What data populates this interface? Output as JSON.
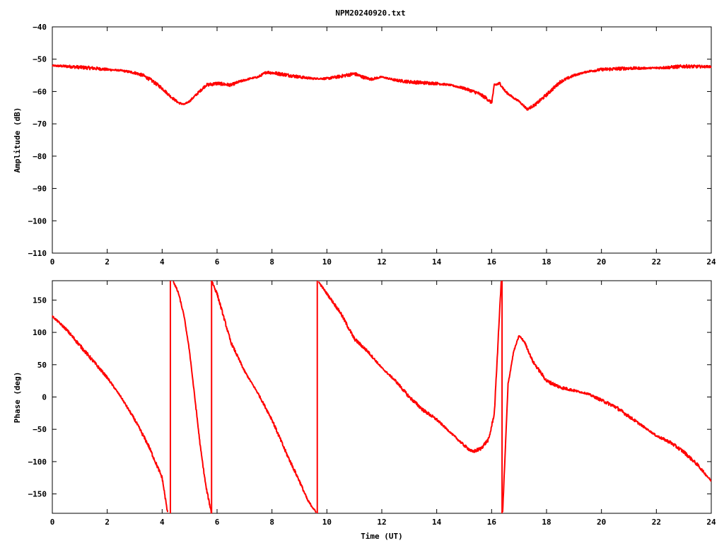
{
  "title": "NPM20240920.txt",
  "colors": {
    "series": "#ff0000",
    "axis": "#000000",
    "background": "#ffffff"
  },
  "chart_data": [
    {
      "type": "line",
      "title": "NPM20240920.txt",
      "xlabel": "",
      "ylabel": "Amplitude (dB)",
      "xlim": [
        0,
        24
      ],
      "ylim": [
        -110,
        -40
      ],
      "x_ticks": [
        0,
        2,
        4,
        6,
        8,
        10,
        12,
        14,
        16,
        18,
        20,
        22,
        24
      ],
      "y_ticks": [
        -40,
        -50,
        -60,
        -70,
        -80,
        -90,
        -100,
        -110
      ],
      "x_tick_labels": [
        "0",
        "2",
        "4",
        "6",
        "8",
        "10",
        "12",
        "14",
        "16",
        "18",
        "20",
        "22",
        "24"
      ],
      "y_tick_labels": [
        "−40",
        "−50",
        "−60",
        "−70",
        "−80",
        "−90",
        "−100",
        "−110"
      ],
      "grid": false,
      "legend": "none",
      "series": [
        {
          "x": [
            0,
            0.5,
            1,
            1.5,
            2,
            2.5,
            3,
            3.3,
            3.6,
            4,
            4.3,
            4.6,
            4.8,
            5,
            5.3,
            5.6,
            6,
            6.3,
            6.5,
            6.8,
            7.2,
            7.5,
            7.8,
            8,
            8.5,
            9,
            9.5,
            10,
            10.5,
            11,
            11.3,
            11.6,
            12,
            12.5,
            13,
            13.5,
            14,
            14.5,
            15,
            15.5,
            15.8,
            16,
            16.1,
            16.3,
            16.5,
            16.8,
            17,
            17.3,
            17.6,
            18,
            18.5,
            19,
            19.5,
            20,
            20.5,
            21,
            21.5,
            22,
            22.5,
            23,
            23.5,
            24
          ],
          "y": [
            -52,
            -52.2,
            -52.5,
            -52.8,
            -53.2,
            -53.5,
            -54.2,
            -55,
            -56.5,
            -59,
            -61.5,
            -63.5,
            -64,
            -63,
            -60.5,
            -58,
            -57.5,
            -57.8,
            -58,
            -57,
            -56,
            -55.5,
            -54,
            -54.2,
            -54.8,
            -55.5,
            -56,
            -56,
            -55.3,
            -54.5,
            -55.5,
            -56.2,
            -55.5,
            -56.5,
            -57,
            -57.3,
            -57.5,
            -58,
            -59,
            -60.5,
            -62,
            -63.5,
            -58,
            -57.5,
            -60,
            -62,
            -63,
            -65.5,
            -64,
            -61,
            -57,
            -55,
            -53.8,
            -53.2,
            -53,
            -52.8,
            -52.8,
            -52.7,
            -52.5,
            -52.2,
            -52.3,
            -52.3
          ]
        }
      ]
    },
    {
      "type": "line",
      "title": "",
      "xlabel": "Time (UT)",
      "ylabel": "Phase (deg)",
      "xlim": [
        0,
        24
      ],
      "ylim": [
        -180,
        180
      ],
      "x_ticks": [
        0,
        2,
        4,
        6,
        8,
        10,
        12,
        14,
        16,
        18,
        20,
        22,
        24
      ],
      "y_ticks": [
        150,
        100,
        50,
        0,
        -50,
        -100,
        -150
      ],
      "x_tick_labels": [
        "0",
        "2",
        "4",
        "6",
        "8",
        "10",
        "12",
        "14",
        "16",
        "18",
        "20",
        "22",
        "24"
      ],
      "y_tick_labels": [
        "150",
        "100",
        "50",
        "0",
        "−50",
        "−100",
        "−150"
      ],
      "grid": false,
      "legend": "none",
      "series": [
        {
          "x": [
            0,
            0.5,
            1,
            1.5,
            2,
            2.5,
            3,
            3.5,
            4,
            4.2
          ],
          "y": [
            125,
            105,
            80,
            55,
            30,
            0,
            -35,
            -75,
            -125,
            -180
          ]
        },
        {
          "x": [
            4.4,
            4.6,
            4.8,
            5,
            5.2,
            5.4,
            5.6,
            5.8
          ],
          "y": [
            180,
            160,
            125,
            70,
            -5,
            -80,
            -140,
            -180
          ]
        },
        {
          "x": [
            5.8,
            6,
            6.2,
            6.5,
            7,
            7.5,
            8,
            8.5,
            9,
            9.3,
            9.6
          ],
          "y": [
            180,
            160,
            130,
            85,
            40,
            5,
            -35,
            -85,
            -130,
            -160,
            -178
          ]
        },
        {
          "x": [
            9.7,
            10,
            10.5,
            11,
            11.5,
            12,
            12.5,
            13,
            13.5,
            14,
            14.5,
            15,
            15.3,
            15.6,
            15.9,
            16.1,
            16.35
          ],
          "y": [
            178,
            160,
            130,
            90,
            70,
            45,
            25,
            0,
            -20,
            -35,
            -55,
            -75,
            -85,
            -80,
            -65,
            -25,
            180
          ]
        },
        {
          "x": [
            16.4,
            16.6,
            16.8,
            17,
            17.2,
            17.5,
            18,
            18.5,
            19,
            19.5,
            20,
            20.5,
            21,
            21.5,
            22,
            22.5,
            23,
            23.5,
            24
          ],
          "y": [
            -180,
            20,
            70,
            95,
            85,
            55,
            25,
            15,
            10,
            5,
            -5,
            -15,
            -30,
            -45,
            -60,
            -70,
            -85,
            -105,
            -130
          ]
        }
      ],
      "wrap_markers": [
        4.3,
        5.8,
        9.65,
        16.38
      ]
    }
  ]
}
